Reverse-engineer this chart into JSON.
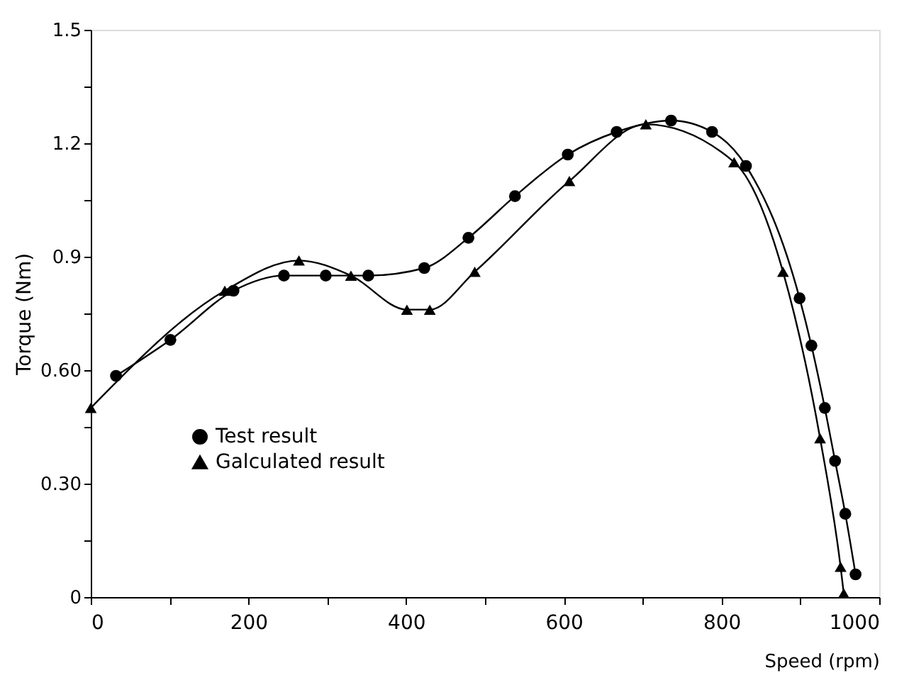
{
  "chart_data": {
    "type": "line",
    "xlabel": "Speed (rpm)",
    "ylabel": "Torque (Nm)",
    "xlim": [
      0,
      1000
    ],
    "ylim": [
      0,
      1.5
    ],
    "xticks": [
      0,
      {
        "value": 100,
        "label": null
      },
      200,
      {
        "value": 300,
        "label": null
      },
      400,
      {
        "value": 500,
        "label": null
      },
      600,
      {
        "value": 700,
        "label": null
      },
      800,
      {
        "value": 900,
        "label": null
      },
      1000
    ],
    "yticks": [
      0,
      {
        "value": 0.15,
        "label": null
      },
      {
        "value": 0.3,
        "label": "0.30"
      },
      {
        "value": 0.45,
        "label": null
      },
      {
        "value": 0.6,
        "label": "0.60"
      },
      {
        "value": 0.75,
        "label": null
      },
      0.9,
      {
        "value": 1.05,
        "label": null
      },
      1.2,
      {
        "value": 1.35,
        "label": null
      },
      1.5
    ],
    "grid": false,
    "legend": "left",
    "line_style": "solid",
    "series": [
      {
        "name": "Test result",
        "color": "#000000",
        "marker": "circle",
        "x": [
          32,
          101,
          181,
          245,
          298,
          352,
          423,
          479,
          538,
          605,
          667,
          736,
          788,
          831,
          899,
          914,
          931,
          944,
          957,
          970
        ],
        "values": [
          0.585,
          0.68,
          0.81,
          0.85,
          0.85,
          0.85,
          0.87,
          0.95,
          1.06,
          1.17,
          1.23,
          1.26,
          1.23,
          1.14,
          0.79,
          0.665,
          0.5,
          0.36,
          0.22,
          0.06
        ]
      },
      {
        "name": "Galculated result",
        "color": "#000000",
        "marker": "triangle",
        "x": [
          0,
          170,
          264,
          330,
          401,
          430,
          487,
          607,
          704,
          816,
          878,
          925,
          951,
          955
        ],
        "values": [
          0.5,
          0.81,
          0.89,
          0.85,
          0.76,
          0.76,
          0.86,
          1.1,
          1.25,
          1.15,
          0.86,
          0.42,
          0.08,
          0.01
        ]
      }
    ]
  }
}
